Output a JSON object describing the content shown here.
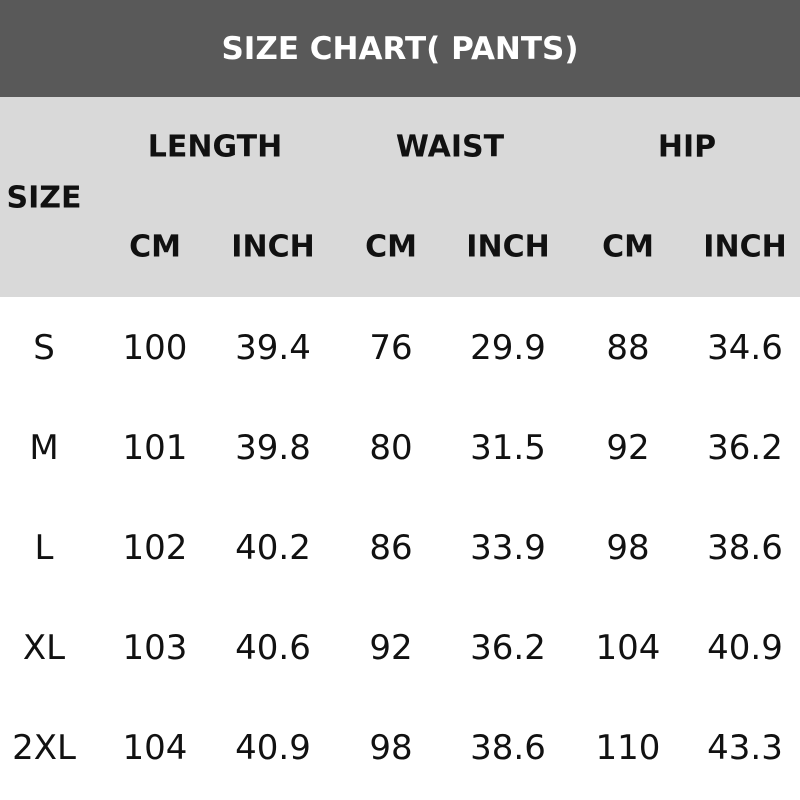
{
  "title": "SIZE CHART( PANTS)",
  "chart_data": {
    "type": "table",
    "title": "SIZE CHART( PANTS)",
    "size_header": "SIZE",
    "groups": [
      "LENGTH",
      "WAIST",
      "HIP"
    ],
    "units": [
      "CM",
      "INCH",
      "CM",
      "INCH",
      "CM",
      "INCH"
    ],
    "rows": [
      {
        "size": "S",
        "values": [
          "100",
          "39.4",
          "76",
          "29.9",
          "88",
          "34.6"
        ]
      },
      {
        "size": "M",
        "values": [
          "101",
          "39.8",
          "80",
          "31.5",
          "92",
          "36.2"
        ]
      },
      {
        "size": "L",
        "values": [
          "102",
          "40.2",
          "86",
          "33.9",
          "98",
          "38.6"
        ]
      },
      {
        "size": "XL",
        "values": [
          "103",
          "40.6",
          "92",
          "36.2",
          "104",
          "40.9"
        ]
      },
      {
        "size": "2XL",
        "values": [
          "104",
          "40.9",
          "98",
          "38.6",
          "110",
          "43.3"
        ]
      }
    ]
  },
  "colors": {
    "title_bg": "#595959",
    "header_bg": "#d9d9d9",
    "title_text": "#ffffff"
  }
}
